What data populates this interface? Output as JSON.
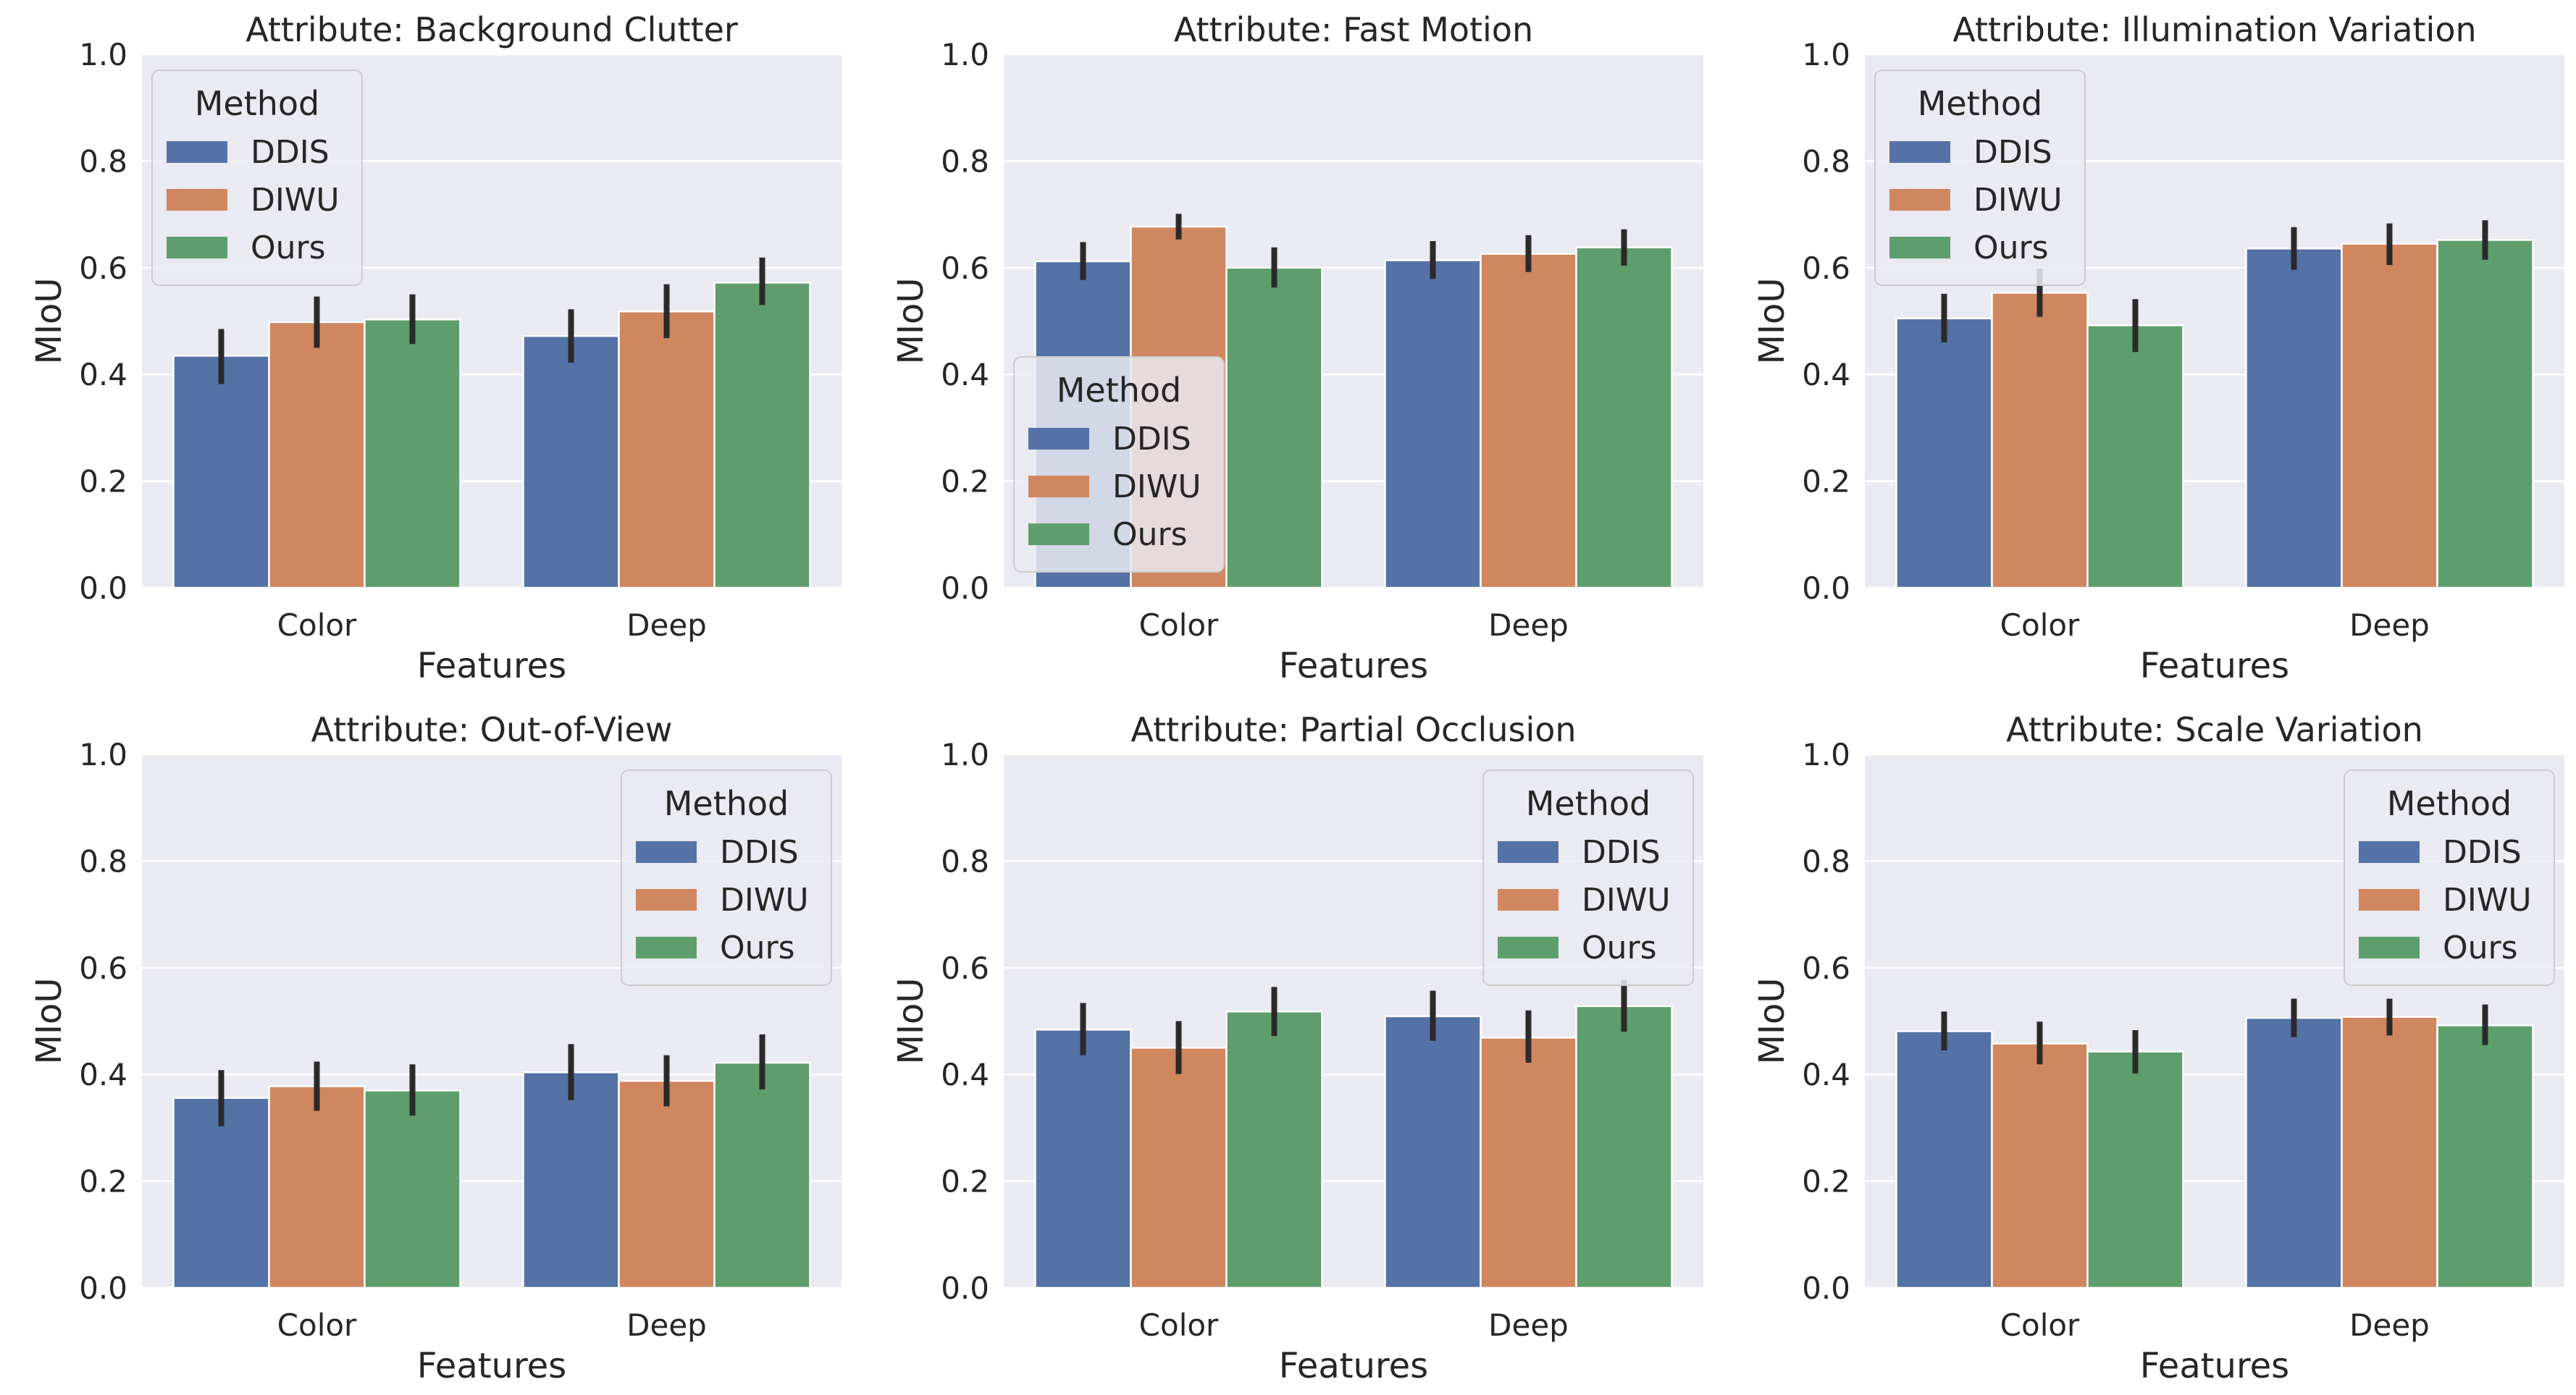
{
  "legend_title": "Method",
  "method_names": [
    "DDIS",
    "DIWU",
    "Ours"
  ],
  "colors": {
    "DDIS": "#5572a6",
    "DIWU": "#d0875f",
    "Ours": "#5e9e6c",
    "panel_bg": "#eaeaf2",
    "grid": "#ffffff",
    "error_bar": "#2a2a2a",
    "text": "#262626"
  },
  "chart_data": [
    {
      "type": "bar",
      "title": "Attribute: Background Clutter",
      "xlabel": "Features",
      "ylabel": "MIoU",
      "categories": [
        "Color",
        "Deep"
      ],
      "ylim": [
        0,
        1.0
      ],
      "yticks": [
        "0.0",
        "0.2",
        "0.4",
        "0.6",
        "0.8",
        "1.0"
      ],
      "legend_position": "upper-left",
      "series": [
        {
          "name": "DDIS",
          "values": [
            0.435,
            0.472
          ],
          "err_low": [
            0.382,
            0.422
          ],
          "err_high": [
            0.485,
            0.522
          ]
        },
        {
          "name": "DIWU",
          "values": [
            0.498,
            0.518
          ],
          "err_low": [
            0.45,
            0.468
          ],
          "err_high": [
            0.546,
            0.569
          ]
        },
        {
          "name": "Ours",
          "values": [
            0.503,
            0.572
          ],
          "err_low": [
            0.457,
            0.53
          ],
          "err_high": [
            0.55,
            0.619
          ]
        }
      ]
    },
    {
      "type": "bar",
      "title": "Attribute: Fast Motion",
      "xlabel": "Features",
      "ylabel": "MIoU",
      "categories": [
        "Color",
        "Deep"
      ],
      "ylim": [
        0,
        1.0
      ],
      "yticks": [
        "0.0",
        "0.2",
        "0.4",
        "0.6",
        "0.8",
        "1.0"
      ],
      "legend_position": "lower-left",
      "series": [
        {
          "name": "DDIS",
          "values": [
            0.612,
            0.614
          ],
          "err_low": [
            0.577,
            0.579
          ],
          "err_high": [
            0.648,
            0.65
          ]
        },
        {
          "name": "DIWU",
          "values": [
            0.677,
            0.626
          ],
          "err_low": [
            0.653,
            0.592
          ],
          "err_high": [
            0.701,
            0.661
          ]
        },
        {
          "name": "Ours",
          "values": [
            0.6,
            0.638
          ],
          "err_low": [
            0.563,
            0.604
          ],
          "err_high": [
            0.638,
            0.672
          ]
        }
      ]
    },
    {
      "type": "bar",
      "title": "Attribute: Illumination Variation",
      "xlabel": "Features",
      "ylabel": "MIoU",
      "categories": [
        "Color",
        "Deep"
      ],
      "ylim": [
        0,
        1.0
      ],
      "yticks": [
        "0.0",
        "0.2",
        "0.4",
        "0.6",
        "0.8",
        "1.0"
      ],
      "legend_position": "upper-left",
      "series": [
        {
          "name": "DDIS",
          "values": [
            0.505,
            0.636
          ],
          "err_low": [
            0.46,
            0.596
          ],
          "err_high": [
            0.551,
            0.676
          ]
        },
        {
          "name": "DIWU",
          "values": [
            0.553,
            0.645
          ],
          "err_low": [
            0.508,
            0.605
          ],
          "err_high": [
            0.598,
            0.683
          ]
        },
        {
          "name": "Ours",
          "values": [
            0.492,
            0.652
          ],
          "err_low": [
            0.442,
            0.615
          ],
          "err_high": [
            0.541,
            0.689
          ]
        }
      ]
    },
    {
      "type": "bar",
      "title": "Attribute: Out-of-View",
      "xlabel": "Features",
      "ylabel": "MIoU",
      "categories": [
        "Color",
        "Deep"
      ],
      "ylim": [
        0,
        1.0
      ],
      "yticks": [
        "0.0",
        "0.2",
        "0.4",
        "0.6",
        "0.8",
        "1.0"
      ],
      "legend_position": "upper-right",
      "series": [
        {
          "name": "DDIS",
          "values": [
            0.356,
            0.404
          ],
          "err_low": [
            0.303,
            0.352
          ],
          "err_high": [
            0.408,
            0.457
          ]
        },
        {
          "name": "DIWU",
          "values": [
            0.378,
            0.388
          ],
          "err_low": [
            0.332,
            0.34
          ],
          "err_high": [
            0.424,
            0.436
          ]
        },
        {
          "name": "Ours",
          "values": [
            0.37,
            0.422
          ],
          "err_low": [
            0.323,
            0.372
          ],
          "err_high": [
            0.419,
            0.475
          ]
        }
      ]
    },
    {
      "type": "bar",
      "title": "Attribute: Partial Occlusion",
      "xlabel": "Features",
      "ylabel": "MIoU",
      "categories": [
        "Color",
        "Deep"
      ],
      "ylim": [
        0,
        1.0
      ],
      "yticks": [
        "0.0",
        "0.2",
        "0.4",
        "0.6",
        "0.8",
        "1.0"
      ],
      "legend_position": "upper-right",
      "series": [
        {
          "name": "DDIS",
          "values": [
            0.484,
            0.509
          ],
          "err_low": [
            0.436,
            0.463
          ],
          "err_high": [
            0.534,
            0.557
          ]
        },
        {
          "name": "DIWU",
          "values": [
            0.45,
            0.469
          ],
          "err_low": [
            0.401,
            0.422
          ],
          "err_high": [
            0.5,
            0.52
          ]
        },
        {
          "name": "Ours",
          "values": [
            0.518,
            0.528
          ],
          "err_low": [
            0.472,
            0.48
          ],
          "err_high": [
            0.564,
            0.577
          ]
        }
      ]
    },
    {
      "type": "bar",
      "title": "Attribute: Scale Variation",
      "xlabel": "Features",
      "ylabel": "MIoU",
      "categories": [
        "Color",
        "Deep"
      ],
      "ylim": [
        0,
        1.0
      ],
      "yticks": [
        "0.0",
        "0.2",
        "0.4",
        "0.6",
        "0.8",
        "1.0"
      ],
      "legend_position": "upper-right",
      "series": [
        {
          "name": "DDIS",
          "values": [
            0.481,
            0.506
          ],
          "err_low": [
            0.445,
            0.47
          ],
          "err_high": [
            0.518,
            0.542
          ]
        },
        {
          "name": "DIWU",
          "values": [
            0.458,
            0.508
          ],
          "err_low": [
            0.419,
            0.473
          ],
          "err_high": [
            0.499,
            0.542
          ]
        },
        {
          "name": "Ours",
          "values": [
            0.443,
            0.492
          ],
          "err_low": [
            0.402,
            0.455
          ],
          "err_high": [
            0.483,
            0.531
          ]
        }
      ]
    }
  ]
}
